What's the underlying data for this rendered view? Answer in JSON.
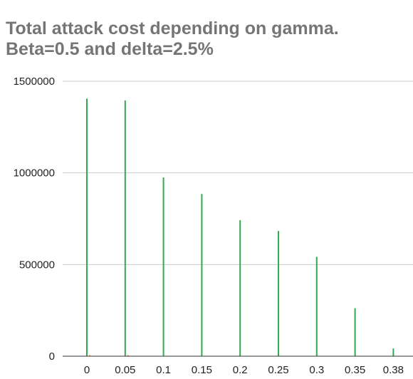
{
  "chart_data": {
    "type": "bar",
    "title_lines": [
      "Total attack cost depending on gamma.",
      "Beta=0.5 and delta=2.5%"
    ],
    "xlabel": "",
    "ylabel": "",
    "categories": [
      "0",
      "0.05",
      "0.1",
      "0.15",
      "0.2",
      "0.25",
      "0.3",
      "0.35",
      "0.38"
    ],
    "series": [
      {
        "color": "#34a853",
        "values": [
          1405000,
          1395000,
          975000,
          885000,
          742000,
          683000,
          542000,
          262000,
          42000
        ]
      },
      {
        "color": "#ff7f0e",
        "values": [
          6000,
          5000,
          0,
          0,
          0,
          0,
          0,
          0,
          0
        ]
      }
    ],
    "yticks": [
      0,
      500000,
      1000000,
      1500000
    ],
    "ytick_labels": [
      "0",
      "500000",
      "1000000",
      "1500000"
    ],
    "ylim": [
      0,
      1500000
    ],
    "grid": true,
    "legend": "none",
    "gridline_color": "#cccccc",
    "baseline_color": "#333333"
  }
}
